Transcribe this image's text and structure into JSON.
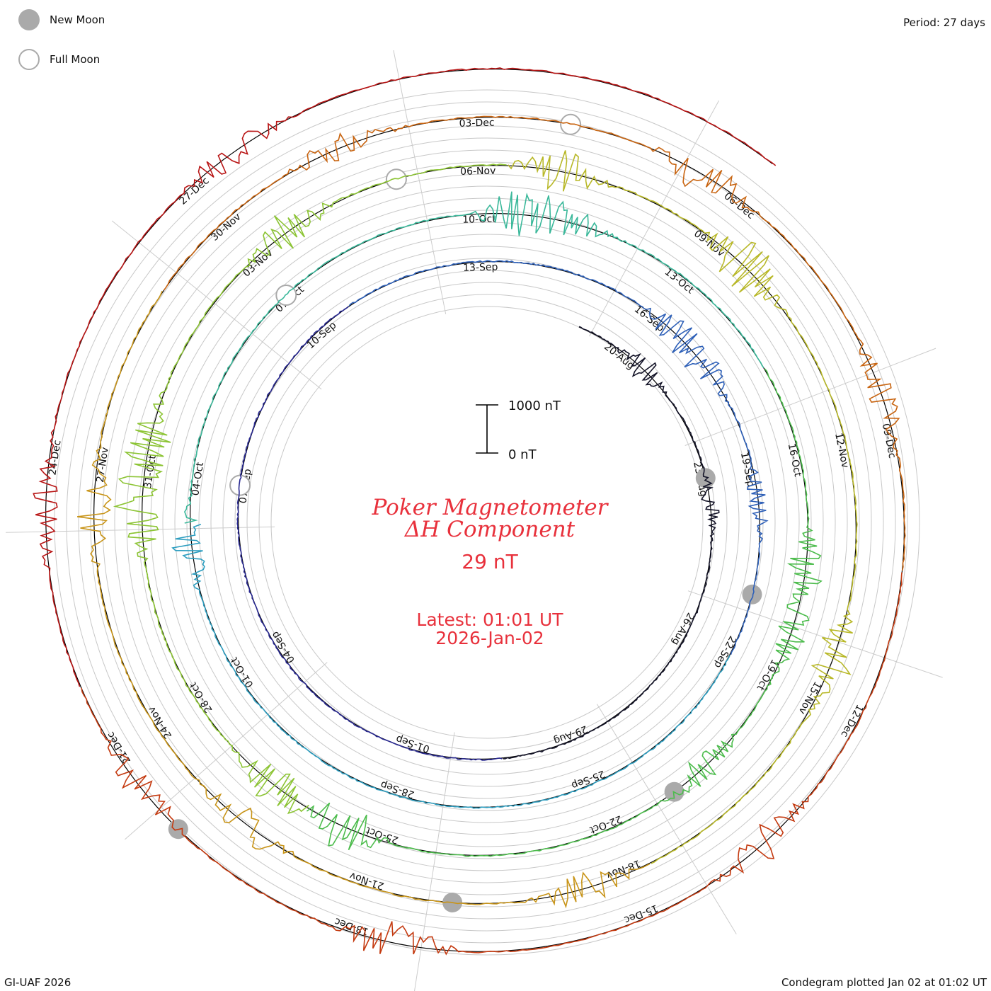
{
  "header": {
    "period_label": "Period: 27 days"
  },
  "legend": {
    "new_moon_label": "New Moon",
    "full_moon_label": "Full Moon",
    "new_moon_color": "#aaaaaa",
    "full_moon_color": "#aaaaaa"
  },
  "footer": {
    "credit": "GI-UAF 2026",
    "plotted": "Condegram plotted Jan 02 at 01:02 UT"
  },
  "center": {
    "title_line1": "Poker Magnetometer",
    "title_line2": "ΔH Component",
    "value": "29 nT",
    "latest_line1": "Latest: 01:01 UT",
    "latest_line2": "2026-Jan-02",
    "title_color": "#e8313c"
  },
  "scale_bar": {
    "top_label": "1000 nT",
    "bottom_label": "0 nT"
  },
  "chart_data": {
    "type": "line",
    "subtype": "condegram-spiral",
    "title": "Poker Magnetometer ΔH Component",
    "period_days": 27,
    "start_date": "2025-08-19",
    "end_date": "2026-01-02",
    "scale_nT": [
      0,
      1000
    ],
    "latest_value_nT": 29,
    "date_labels": [
      "20-Aug",
      "23-Aug",
      "26-Aug",
      "29-Aug",
      "01-Sep",
      "04-Sep",
      "07-Sep",
      "10-Sep",
      "13-Sep",
      "16-Sep",
      "19-Sep",
      "22-Sep",
      "25-Sep",
      "28-Sep",
      "01-Oct",
      "04-Oct",
      "07-Oct",
      "10-Oct",
      "13-Oct",
      "16-Oct",
      "19-Oct",
      "22-Oct",
      "25-Oct",
      "28-Oct",
      "31-Oct",
      "03-Nov",
      "06-Nov",
      "09-Nov",
      "12-Nov",
      "15-Nov",
      "18-Nov",
      "21-Nov",
      "24-Nov",
      "27-Nov",
      "30-Nov",
      "03-Dec",
      "06-Dec",
      "09-Dec",
      "12-Dec",
      "15-Dec",
      "18-Dec",
      "21-Dec",
      "24-Dec",
      "27-Dec"
    ],
    "series_colors": [
      "#141428",
      "#282890",
      "#2e60b8",
      "#2e9ec0",
      "#3ab89a",
      "#4cbc4c",
      "#8cc434",
      "#b8b828",
      "#c89418",
      "#c86410",
      "#c43a10",
      "#b81414"
    ],
    "new_moons": [
      "2025-08-23",
      "2025-09-21",
      "2025-10-21",
      "2025-11-20",
      "2025-12-20"
    ],
    "full_moons": [
      "2025-09-07",
      "2025-10-07",
      "2025-11-05",
      "2025-12-04"
    ],
    "disturbances": [
      {
        "day": 1.5,
        "amplitude_nT": 180
      },
      {
        "day": 4.5,
        "amplitude_nT": 120
      },
      {
        "day": 28.5,
        "amplitude_nT": 220
      },
      {
        "day": 29.2,
        "amplitude_nT": 200
      },
      {
        "day": 31.5,
        "amplitude_nT": 160
      },
      {
        "day": 45.0,
        "amplitude_nT": 250
      },
      {
        "day": 52.5,
        "amplitude_nT": 300
      },
      {
        "day": 53.2,
        "amplitude_nT": 280
      },
      {
        "day": 59.5,
        "amplitude_nT": 260
      },
      {
        "day": 60.3,
        "amplitude_nT": 240
      },
      {
        "day": 62.5,
        "amplitude_nT": 230
      },
      {
        "day": 67.5,
        "amplitude_nT": 320
      },
      {
        "day": 68.5,
        "amplitude_nT": 300
      },
      {
        "day": 72.5,
        "amplitude_nT": 360
      },
      {
        "day": 73.3,
        "amplitude_nT": 330
      },
      {
        "day": 76.5,
        "amplitude_nT": 280
      },
      {
        "day": 80.0,
        "amplitude_nT": 300
      },
      {
        "day": 82.5,
        "amplitude_nT": 360
      },
      {
        "day": 87.5,
        "amplitude_nT": 300
      },
      {
        "day": 91.5,
        "amplitude_nT": 260
      },
      {
        "day": 95.5,
        "amplitude_nT": 240
      },
      {
        "day": 99.5,
        "amplitude_nT": 260
      },
      {
        "day": 104.5,
        "amplitude_nT": 200
      },
      {
        "day": 108.5,
        "amplitude_nT": 280
      },
      {
        "day": 111.5,
        "amplitude_nT": 200
      },
      {
        "day": 116.5,
        "amplitude_nT": 240
      },
      {
        "day": 120.5,
        "amplitude_nT": 300
      },
      {
        "day": 123.5,
        "amplitude_nT": 220
      },
      {
        "day": 126.5,
        "amplitude_nT": 200
      },
      {
        "day": 130.5,
        "amplitude_nT": 180
      }
    ]
  }
}
